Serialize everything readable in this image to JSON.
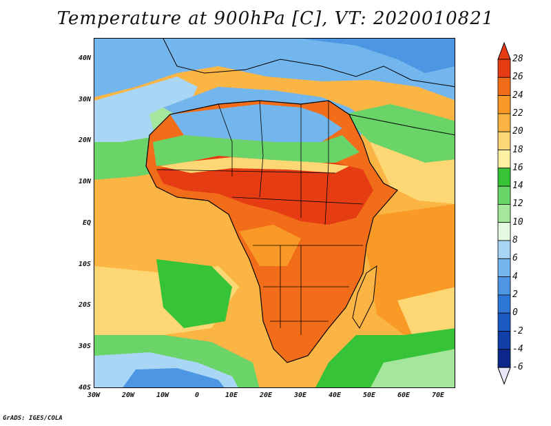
{
  "title": "Temperature at 900hPa [C], VT: 2020010821",
  "credit": "GrADS: IGES/COLA",
  "lat_labels": [
    {
      "text": "40N",
      "lat": 40
    },
    {
      "text": "30N",
      "lat": 30
    },
    {
      "text": "20N",
      "lat": 20
    },
    {
      "text": "10N",
      "lat": 10
    },
    {
      "text": "EQ",
      "lat": 0
    },
    {
      "text": "10S",
      "lat": -10
    },
    {
      "text": "20S",
      "lat": -20
    },
    {
      "text": "30S",
      "lat": -30
    },
    {
      "text": "40S",
      "lat": -40
    }
  ],
  "lon_labels": [
    {
      "text": "30W",
      "lon": -30
    },
    {
      "text": "20W",
      "lon": -20
    },
    {
      "text": "10W",
      "lon": -10
    },
    {
      "text": "0",
      "lon": 0
    },
    {
      "text": "10E",
      "lon": 10
    },
    {
      "text": "20E",
      "lon": 20
    },
    {
      "text": "30E",
      "lon": 30
    },
    {
      "text": "40E",
      "lon": 40
    },
    {
      "text": "50E",
      "lon": 50
    },
    {
      "text": "60E",
      "lon": 60
    },
    {
      "text": "70E",
      "lon": 70
    }
  ],
  "colorbar": {
    "labels": [
      "28",
      "26",
      "24",
      "22",
      "20",
      "18",
      "16",
      "14",
      "12",
      "10",
      "8",
      "6",
      "4",
      "2",
      "0",
      "-2",
      "-4",
      "-6"
    ],
    "colors": [
      "#e63c14",
      "#f26d19",
      "#f99a26",
      "#fbb544",
      "#fdd773",
      "#fdf1a4",
      "#37c337",
      "#6ad468",
      "#a3e69c",
      "#e4fbe1",
      "#a9d6f5",
      "#73b6ee",
      "#4c96e4",
      "#2d76d6",
      "#1c58c2",
      "#123ea9",
      "#0c2789",
      "#fafafa"
    ]
  },
  "map": {
    "lon_range": [
      -30,
      75
    ],
    "lat_range": [
      -40,
      45
    ],
    "field_colors": {
      "ocean_warm": "#f7ae38",
      "ocean_mild": "#fdd773",
      "ocean_pale": "#fdf1a4",
      "ocean_green": "#37c337",
      "ocean_lightgreen": "#a3e69c",
      "ocean_cold": "#73b6ee",
      "land_hot": "#e63c14",
      "land_warm": "#f26d19",
      "land_mild": "#f99a26",
      "med_cold": "#4c96e4",
      "sahara_cool": "#73b6ee"
    }
  }
}
